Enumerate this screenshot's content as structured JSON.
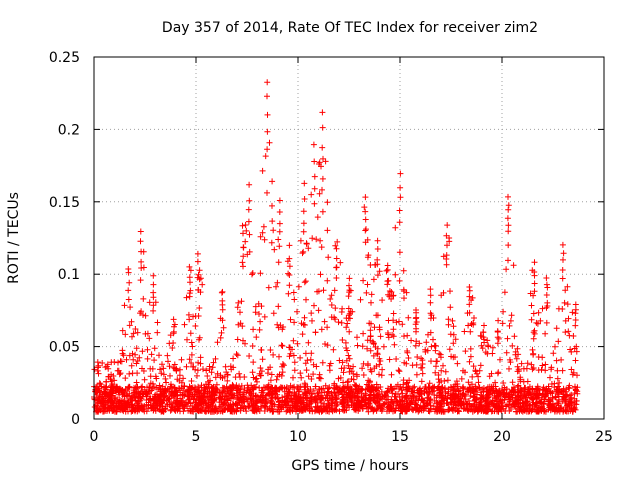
{
  "chart_data": {
    "type": "scatter",
    "title": "Day 357 of 2014, Rate Of TEC Index for receiver zim2",
    "xlabel": "GPS time / hours",
    "ylabel": "ROTI / TECUs",
    "xlim": [
      0,
      25
    ],
    "ylim": [
      0,
      0.25
    ],
    "x_ticks": [
      0,
      5,
      10,
      15,
      20,
      25
    ],
    "x_tick_labels": [
      "0",
      "5",
      "10",
      "15",
      "20",
      "25"
    ],
    "y_ticks": [
      0,
      0.05,
      0.1,
      0.15,
      0.2,
      0.25
    ],
    "y_tick_labels": [
      "0",
      "0.05",
      "0.1",
      "0.15",
      "0.2",
      "0.25"
    ],
    "grid": true,
    "legend": "none",
    "marker": "+",
    "series": [
      {
        "name": "ROTI",
        "color": "#ff0000",
        "time_span_hours": [
          0,
          23.7
        ],
        "typical_range": [
          0.005,
          0.05
        ],
        "peaks": [
          {
            "x": 0.2,
            "y": 0.042
          },
          {
            "x": 1.7,
            "y": 0.107
          },
          {
            "x": 2.3,
            "y": 0.131
          },
          {
            "x": 2.9,
            "y": 0.099
          },
          {
            "x": 3.9,
            "y": 0.07
          },
          {
            "x": 4.7,
            "y": 0.106
          },
          {
            "x": 5.1,
            "y": 0.115
          },
          {
            "x": 6.3,
            "y": 0.09
          },
          {
            "x": 7.3,
            "y": 0.135
          },
          {
            "x": 7.6,
            "y": 0.162
          },
          {
            "x": 8.5,
            "y": 0.236
          },
          {
            "x": 9.1,
            "y": 0.154
          },
          {
            "x": 9.6,
            "y": 0.12
          },
          {
            "x": 10.3,
            "y": 0.163
          },
          {
            "x": 10.8,
            "y": 0.19
          },
          {
            "x": 11.2,
            "y": 0.212
          },
          {
            "x": 11.9,
            "y": 0.126
          },
          {
            "x": 12.5,
            "y": 0.1
          },
          {
            "x": 13.3,
            "y": 0.154
          },
          {
            "x": 13.9,
            "y": 0.126
          },
          {
            "x": 14.4,
            "y": 0.11
          },
          {
            "x": 15.0,
            "y": 0.171
          },
          {
            "x": 15.8,
            "y": 0.078
          },
          {
            "x": 16.5,
            "y": 0.09
          },
          {
            "x": 17.3,
            "y": 0.136
          },
          {
            "x": 18.4,
            "y": 0.095
          },
          {
            "x": 19.1,
            "y": 0.067
          },
          {
            "x": 19.8,
            "y": 0.068
          },
          {
            "x": 20.3,
            "y": 0.155
          },
          {
            "x": 21.6,
            "y": 0.111
          },
          {
            "x": 22.2,
            "y": 0.098
          },
          {
            "x": 23.0,
            "y": 0.123
          },
          {
            "x": 23.6,
            "y": 0.083
          }
        ]
      }
    ]
  }
}
